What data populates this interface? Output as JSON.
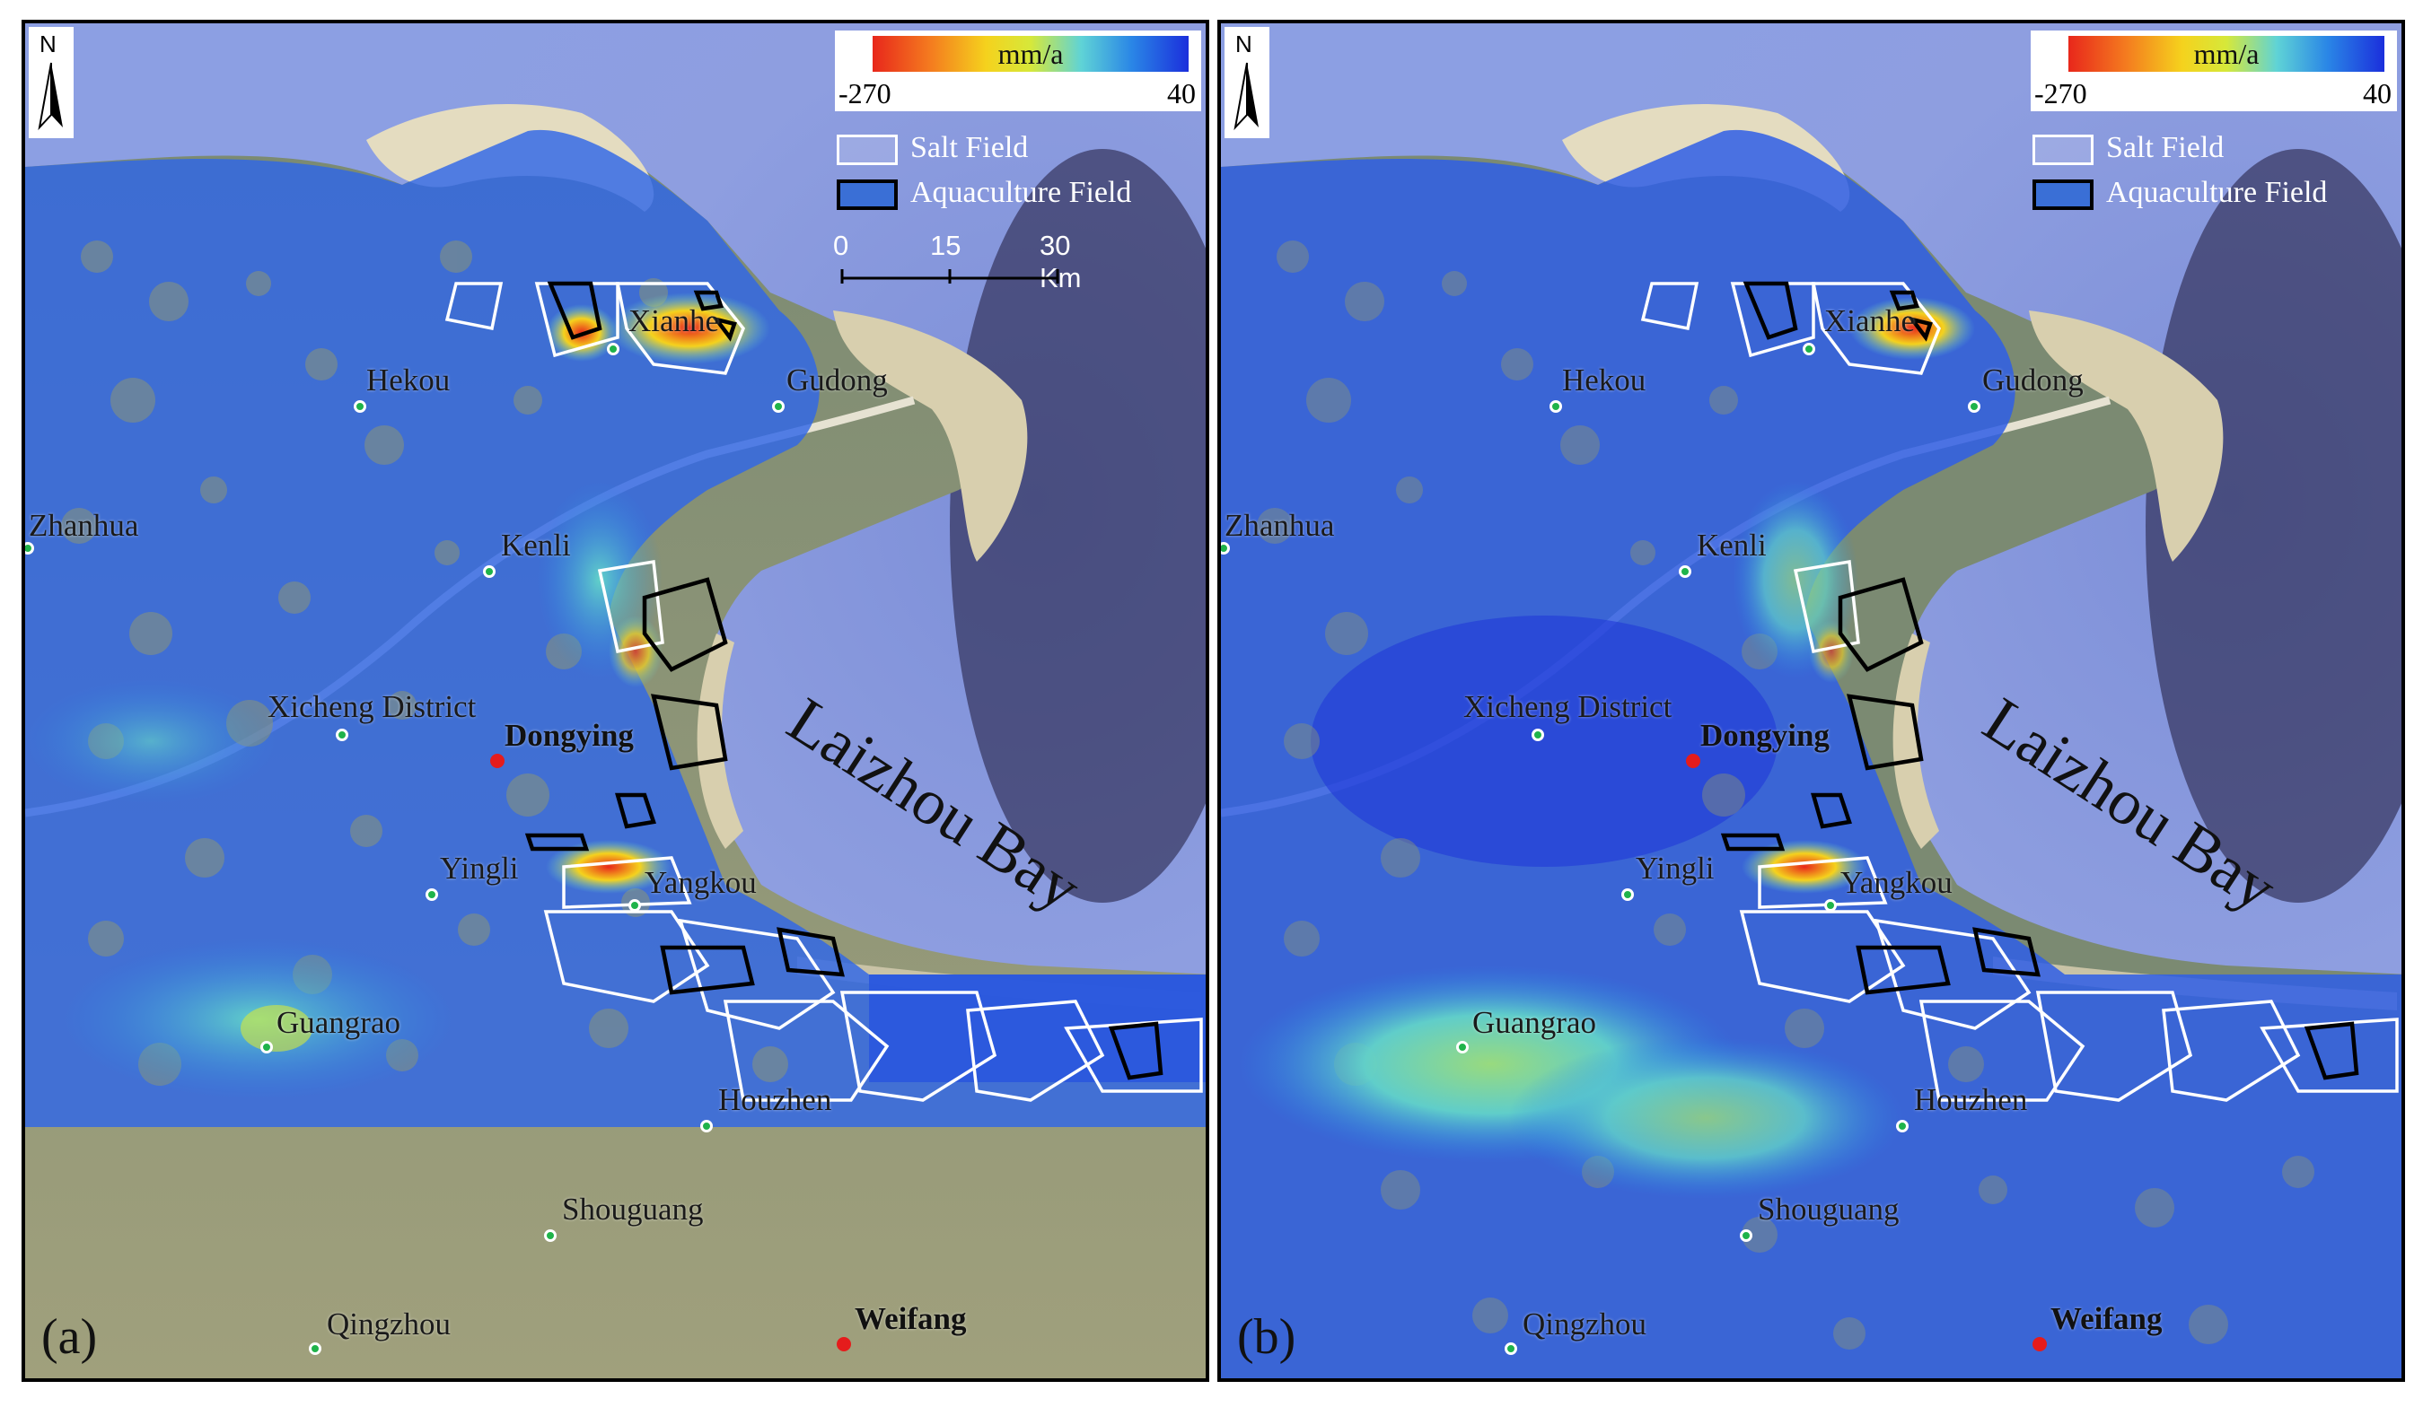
{
  "figure": {
    "panels": [
      {
        "id": "a",
        "label": "(a)"
      },
      {
        "id": "b",
        "label": "(b)"
      }
    ]
  },
  "legend": {
    "colorbar_title": "mm/a",
    "min": "-270",
    "max": "40",
    "salt_field": "Salt Field",
    "aquaculture_field": "Aquaculture Field",
    "colors": [
      "#e8271b",
      "#f47a1f",
      "#f5d21d",
      "#d6e83a",
      "#5fd3d6",
      "#2a86e6",
      "#1b2fdc"
    ]
  },
  "scale": {
    "ticks": [
      "0",
      "15",
      "30 Km"
    ]
  },
  "north_arrow": {
    "label": "N"
  },
  "bay": "Laizhou Bay",
  "places": {
    "xianhe": "Xianhe",
    "hekou": "Hekou",
    "gudong": "Gudong",
    "zhanhua": "Zhanhua",
    "kenli": "Kenli",
    "xicheng": "Xicheng District",
    "dongying": "Dongying",
    "yingli": "Yingli",
    "yangkou": "Yangkou",
    "guangrao": "Guangrao",
    "houzhen": "Houzhen",
    "shouguang": "Shouguang",
    "qingzhou": "Qingzhou",
    "weifang": "Weifang"
  }
}
